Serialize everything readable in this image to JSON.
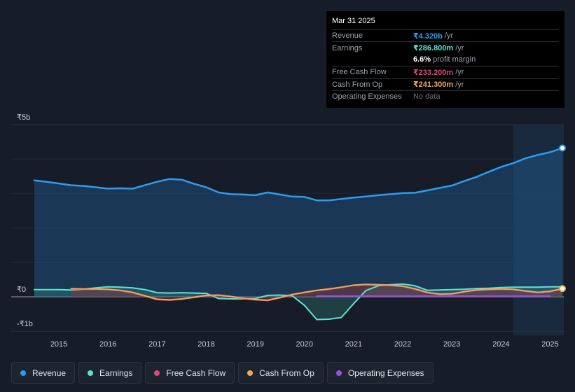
{
  "tooltip": {
    "date": "Mar 31 2025",
    "rows": [
      {
        "label": "Revenue",
        "value": "₹4.320b",
        "unit": "/yr",
        "color": "#2e9bf0"
      },
      {
        "label": "Earnings",
        "value": "₹286.800m",
        "unit": "/yr",
        "color": "#5fe3d0"
      },
      {
        "label": "",
        "value": "6.6%",
        "unit": "profit margin",
        "color": "#ffffff"
      },
      {
        "label": "Free Cash Flow",
        "value": "₹233.200m",
        "unit": "/yr",
        "color": "#e0457b"
      },
      {
        "label": "Cash From Op",
        "value": "₹241.300m",
        "unit": "/yr",
        "color": "#f0a856"
      },
      {
        "label": "Operating Expenses",
        "value": "No data",
        "unit": "",
        "color": "#6b7280"
      }
    ]
  },
  "legend": [
    {
      "label": "Revenue",
      "color": "#2e9bf0"
    },
    {
      "label": "Earnings",
      "color": "#5fe3d0"
    },
    {
      "label": "Free Cash Flow",
      "color": "#e0457b"
    },
    {
      "label": "Cash From Op",
      "color": "#f0a856"
    },
    {
      "label": "Operating Expenses",
      "color": "#9b4fe0"
    }
  ],
  "chart_data": {
    "type": "area",
    "title": "",
    "xlabel": "",
    "ylabel": "",
    "y_unit": "INR billions",
    "ylim": [
      -1,
      5
    ],
    "y_tick_values": [
      5,
      0,
      -1
    ],
    "y_tick_labels": [
      "₹5b",
      "₹0",
      "-₹1b"
    ],
    "x_tick_values": [
      2015,
      2016,
      2017,
      2018,
      2019,
      2020,
      2021,
      2022,
      2023,
      2024,
      2025
    ],
    "x_tick_labels": [
      "2015",
      "2016",
      "2017",
      "2018",
      "2019",
      "2020",
      "2021",
      "2022",
      "2023",
      "2024",
      "2025"
    ],
    "xlim": [
      2014.5,
      2025.25
    ],
    "highlight_range": [
      2024.25,
      2025.25
    ],
    "series": [
      {
        "name": "Revenue",
        "color": "#2e9bf0",
        "x": [
          2014.5,
          2014.75,
          2015.0,
          2015.25,
          2015.5,
          2015.75,
          2016.0,
          2016.25,
          2016.5,
          2016.75,
          2017.0,
          2017.25,
          2017.5,
          2017.75,
          2018.0,
          2018.25,
          2018.5,
          2018.75,
          2019.0,
          2019.25,
          2019.5,
          2019.75,
          2020.0,
          2020.25,
          2020.5,
          2020.75,
          2021.0,
          2021.25,
          2021.5,
          2021.75,
          2022.0,
          2022.25,
          2022.5,
          2022.75,
          2023.0,
          2023.25,
          2023.5,
          2023.75,
          2024.0,
          2024.25,
          2024.5,
          2024.75,
          2025.0,
          2025.25
        ],
        "values": [
          3.38,
          3.34,
          3.29,
          3.24,
          3.22,
          3.18,
          3.14,
          3.15,
          3.14,
          3.24,
          3.34,
          3.42,
          3.4,
          3.28,
          3.18,
          3.03,
          2.98,
          2.97,
          2.95,
          3.03,
          2.97,
          2.91,
          2.9,
          2.8,
          2.8,
          2.84,
          2.88,
          2.91,
          2.95,
          2.98,
          3.01,
          3.02,
          3.09,
          3.16,
          3.23,
          3.36,
          3.48,
          3.63,
          3.77,
          3.88,
          4.02,
          4.12,
          4.2,
          4.32
        ]
      },
      {
        "name": "Earnings",
        "color": "#5fe3d0",
        "x": [
          2014.5,
          2014.75,
          2015.0,
          2015.25,
          2015.5,
          2015.75,
          2016.0,
          2016.25,
          2016.5,
          2016.75,
          2017.0,
          2017.25,
          2017.5,
          2017.75,
          2018.0,
          2018.25,
          2018.5,
          2018.75,
          2019.0,
          2019.25,
          2019.5,
          2019.75,
          2020.0,
          2020.25,
          2020.5,
          2020.75,
          2021.0,
          2021.25,
          2021.5,
          2021.75,
          2022.0,
          2022.25,
          2022.5,
          2022.75,
          2023.0,
          2023.25,
          2023.5,
          2023.75,
          2024.0,
          2024.25,
          2024.5,
          2024.75,
          2025.0,
          2025.25
        ],
        "values": [
          0.21,
          0.21,
          0.21,
          0.2,
          0.22,
          0.26,
          0.29,
          0.28,
          0.26,
          0.21,
          0.12,
          0.11,
          0.12,
          0.11,
          0.1,
          -0.05,
          -0.06,
          -0.06,
          -0.05,
          0.04,
          0.05,
          0.03,
          -0.25,
          -0.66,
          -0.65,
          -0.6,
          -0.2,
          0.18,
          0.32,
          0.35,
          0.37,
          0.32,
          0.19,
          0.2,
          0.21,
          0.22,
          0.24,
          0.25,
          0.27,
          0.28,
          0.28,
          0.28,
          0.29,
          0.29
        ]
      },
      {
        "name": "Free Cash Flow",
        "color": "#e0457b",
        "x": [
          2015.25,
          2015.5,
          2015.75,
          2016.0,
          2016.25,
          2016.5,
          2016.75,
          2017.0,
          2017.25,
          2017.5,
          2017.75,
          2018.0,
          2018.25,
          2018.5,
          2018.75,
          2019.0,
          2019.25,
          2019.5,
          2019.75,
          2020.0,
          2020.25,
          2020.5,
          2020.75,
          2021.0,
          2021.25,
          2021.5,
          2021.75,
          2022.0,
          2022.25,
          2022.5,
          2022.75,
          2023.0,
          2023.25,
          2023.5,
          2023.75,
          2024.0,
          2024.25,
          2024.5,
          2024.75,
          2025.0,
          2025.25
        ],
        "values": [
          0.23,
          0.22,
          0.22,
          0.21,
          0.18,
          0.12,
          0.02,
          -0.08,
          -0.1,
          -0.07,
          -0.02,
          0.03,
          0.04,
          0.0,
          -0.05,
          -0.09,
          -0.11,
          -0.03,
          0.06,
          0.12,
          0.18,
          0.22,
          0.27,
          0.33,
          0.35,
          0.34,
          0.33,
          0.3,
          0.22,
          0.12,
          0.07,
          0.08,
          0.14,
          0.19,
          0.21,
          0.22,
          0.21,
          0.16,
          0.12,
          0.15,
          0.23
        ]
      },
      {
        "name": "Cash From Op",
        "color": "#f0a856",
        "x": [
          2015.25,
          2015.5,
          2015.75,
          2016.0,
          2016.25,
          2016.5,
          2016.75,
          2017.0,
          2017.25,
          2017.5,
          2017.75,
          2018.0,
          2018.25,
          2018.5,
          2018.75,
          2019.0,
          2019.25,
          2019.5,
          2019.75,
          2020.0,
          2020.25,
          2020.5,
          2020.75,
          2021.0,
          2021.25,
          2021.5,
          2021.75,
          2022.0,
          2022.25,
          2022.5,
          2022.75,
          2023.0,
          2023.25,
          2023.5,
          2023.75,
          2024.0,
          2024.25,
          2024.5,
          2024.75,
          2025.0,
          2025.25
        ],
        "values": [
          0.24,
          0.23,
          0.23,
          0.22,
          0.19,
          0.13,
          0.03,
          -0.07,
          -0.09,
          -0.06,
          -0.01,
          0.04,
          0.05,
          0.01,
          -0.04,
          -0.08,
          -0.1,
          -0.02,
          0.07,
          0.13,
          0.19,
          0.23,
          0.28,
          0.34,
          0.36,
          0.35,
          0.34,
          0.31,
          0.23,
          0.13,
          0.08,
          0.09,
          0.15,
          0.2,
          0.22,
          0.23,
          0.22,
          0.17,
          0.13,
          0.16,
          0.24
        ]
      },
      {
        "name": "Operating Expenses",
        "color": "#9b4fe0",
        "x": [
          2020.25,
          2025.0
        ],
        "values": [
          0.02,
          0.02
        ]
      }
    ]
  }
}
